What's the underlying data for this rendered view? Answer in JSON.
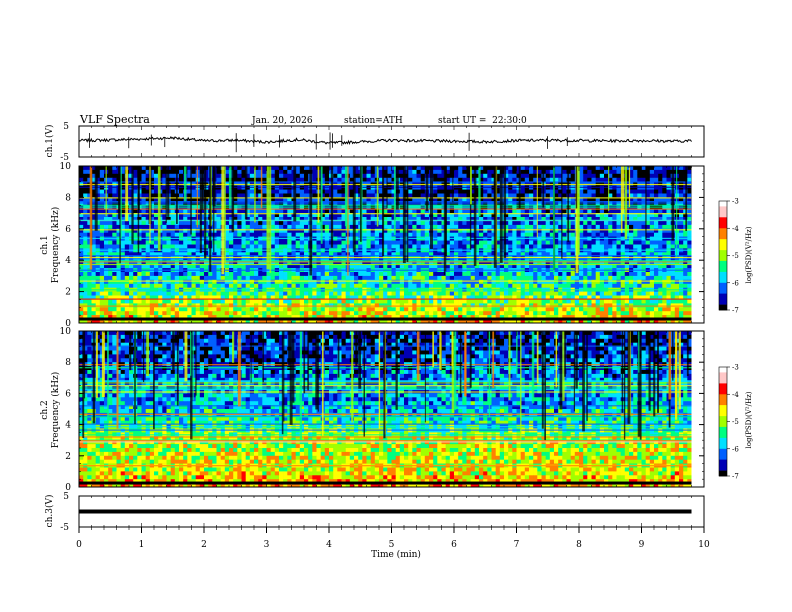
{
  "header": {
    "title": "VLF Spectra",
    "date": "Jan. 20, 2026",
    "station": "station=ATH",
    "start": "start UT =  22:30:0"
  },
  "colors": {
    "waveform": "#000000",
    "spectrogram_background": "#0a0aa8",
    "colormap": [
      "#000000",
      "#0000b4",
      "#0060ff",
      "#00e0ff",
      "#00ff80",
      "#a0ff00",
      "#ffff00",
      "#ff8000",
      "#ff0000",
      "#ffc8c8",
      "#ffffff"
    ]
  },
  "chart_data": [
    {
      "type": "line",
      "name": "ch1-waveform",
      "ylabel": "ch.1(V)",
      "ylim": [
        -5,
        5
      ],
      "yticks": [
        "5",
        "-5"
      ],
      "x": [
        0.0,
        0.5,
        1.0,
        1.5,
        2.0,
        2.5,
        3.0,
        3.5,
        4.0,
        4.5,
        5.0,
        5.5,
        6.0,
        6.5,
        7.0,
        7.5,
        8.0,
        8.5,
        9.0,
        9.5,
        9.8
      ],
      "values": [
        0.3,
        0.5,
        0.8,
        1.2,
        0.2,
        0.4,
        -0.2,
        0.6,
        -0.5,
        -0.1,
        0.4,
        0.2,
        0.1,
        -0.1,
        0.3,
        0.4,
        0.3,
        0.2,
        0.3,
        0.1,
        0.2
      ]
    },
    {
      "type": "heatmap",
      "name": "ch1-spectrogram",
      "ylabel_channel": "ch.1",
      "ylabel": "Frequency (kHz)",
      "ylim": [
        0,
        10
      ],
      "yticks": [
        "0",
        "2",
        "4",
        "6",
        "8",
        "10"
      ],
      "colorbar": {
        "label": "log(PSD)(V²/Hz)",
        "range": [
          -7,
          -3
        ],
        "ticks": [
          "-3",
          "-4",
          "-5",
          "-6",
          "-7"
        ]
      },
      "freq_bands_khz": [
        0,
        1,
        2,
        3,
        4,
        5,
        6,
        7,
        8,
        9,
        10
      ],
      "mean_log_psd": [
        -4.5,
        -4.9,
        -5.4,
        -5.8,
        -6.0,
        -6.0,
        -6.1,
        -6.2,
        -6.6,
        -6.6,
        -6.7
      ]
    },
    {
      "type": "heatmap",
      "name": "ch2-spectrogram",
      "ylabel_channel": "ch.2",
      "ylabel": "Frequency (kHz)",
      "ylim": [
        0,
        10
      ],
      "yticks": [
        "0",
        "2",
        "4",
        "6",
        "8",
        "10"
      ],
      "colorbar": {
        "label": "log(PSD)(V²/Hz)",
        "range": [
          -7,
          -3
        ],
        "ticks": [
          "-3",
          "-4",
          "-5",
          "-6",
          "-7"
        ]
      },
      "freq_bands_khz": [
        0,
        1,
        2,
        3,
        4,
        5,
        6,
        7,
        8,
        9,
        10
      ],
      "mean_log_psd": [
        -4.4,
        -4.8,
        -4.9,
        -5.0,
        -5.6,
        -5.9,
        -6.1,
        -6.2,
        -6.5,
        -6.6,
        -6.7
      ]
    },
    {
      "type": "line",
      "name": "ch3-waveform",
      "ylabel": "ch.3(V)",
      "ylim": [
        -5,
        5
      ],
      "yticks": [
        "5",
        "-5"
      ],
      "x": [
        0.0,
        9.8
      ],
      "values": [
        0.0,
        0.0
      ]
    }
  ],
  "xaxis": {
    "label": "Time (min)",
    "range": [
      0,
      10
    ],
    "ticks": [
      "0",
      "1",
      "2",
      "3",
      "4",
      "5",
      "6",
      "7",
      "8",
      "9",
      "10"
    ]
  }
}
